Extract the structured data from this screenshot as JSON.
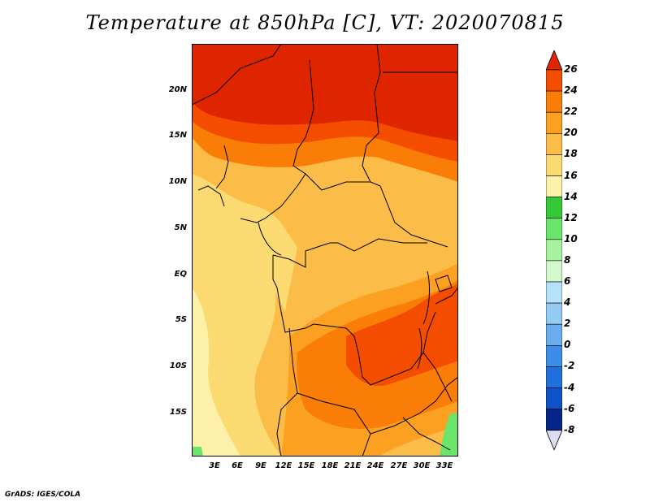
{
  "title": "Temperature at 850hPa [C], VT: 2020070815",
  "credit": "GrADS: IGES/COLA",
  "y_ticks": [
    "20N",
    "15N",
    "10N",
    "5N",
    "EQ",
    "5S",
    "10S",
    "15S"
  ],
  "x_ticks": [
    "3E",
    "6E",
    "9E",
    "12E",
    "15E",
    "18E",
    "21E",
    "24E",
    "27E",
    "30E",
    "33E"
  ],
  "colorbar": {
    "labels": [
      "26",
      "24",
      "22",
      "20",
      "18",
      "16",
      "14",
      "12",
      "10",
      "8",
      "6",
      "4",
      "2",
      "0",
      "-2",
      "-4",
      "-6",
      "-8"
    ],
    "colors": [
      "#df2400",
      "#f44d00",
      "#f97d06",
      "#fba021",
      "#fbbd47",
      "#fbda72",
      "#fdf1a9",
      "#35c93a",
      "#6be46a",
      "#a7f39f",
      "#d2f9cc",
      "#b5e1fb",
      "#94cbf4",
      "#6aaef0",
      "#3d8ce8",
      "#216fdc",
      "#0f51c8",
      "#06258b",
      "#0a0a66",
      "#ddddf6"
    ]
  },
  "map_colors": {
    "hot": "#df2400",
    "t24": "#f44d00",
    "t22": "#f97d06",
    "t20": "#fba021",
    "t18": "#fbbd47",
    "t16": "#fbda72",
    "t14": "#fdf1a9",
    "green": "#6be46a"
  }
}
